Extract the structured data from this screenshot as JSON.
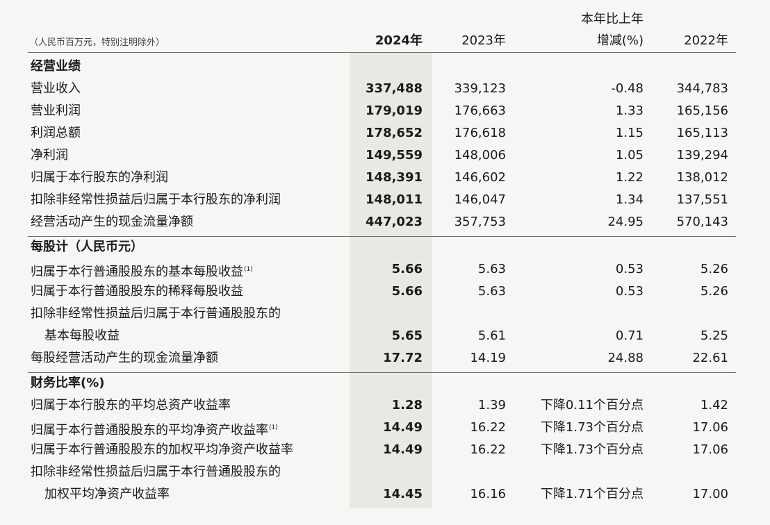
{
  "header": {
    "unit_note": "（人民币百万元，特别注明除外）",
    "col_2024": "2024年",
    "col_2023": "2023年",
    "col_change_line1": "本年比上年",
    "col_change_line2": "增减(%)",
    "col_2022": "2022年"
  },
  "sections": [
    {
      "title": "经营业绩",
      "rows": [
        {
          "label": "营业收入",
          "v2024": "337,488",
          "v2023": "339,123",
          "change": "-0.48",
          "v2022": "344,783"
        },
        {
          "label": "营业利润",
          "v2024": "179,019",
          "v2023": "176,663",
          "change": "1.33",
          "v2022": "165,156"
        },
        {
          "label": "利润总额",
          "v2024": "178,652",
          "v2023": "176,618",
          "change": "1.15",
          "v2022": "165,113"
        },
        {
          "label": "净利润",
          "v2024": "149,559",
          "v2023": "148,006",
          "change": "1.05",
          "v2022": "139,294"
        },
        {
          "label": "归属于本行股东的净利润",
          "v2024": "148,391",
          "v2023": "146,602",
          "change": "1.22",
          "v2022": "138,012"
        },
        {
          "label": "扣除非经常性损益后归属于本行股东的净利润",
          "v2024": "148,011",
          "v2023": "146,047",
          "change": "1.34",
          "v2022": "137,551"
        },
        {
          "label": "经营活动产生的现金流量净额",
          "v2024": "447,023",
          "v2023": "357,753",
          "change": "24.95",
          "v2022": "570,143"
        }
      ]
    },
    {
      "title": "每股计（人民币元）",
      "rows": [
        {
          "label": "归属于本行普通股股东的基本每股收益",
          "note": "(1)",
          "v2024": "5.66",
          "v2023": "5.63",
          "change": "0.53",
          "v2022": "5.26"
        },
        {
          "label": "归属于本行普通股股东的稀释每股收益",
          "v2024": "5.66",
          "v2023": "5.63",
          "change": "0.53",
          "v2022": "5.26"
        },
        {
          "label": "扣除非经常性损益后归属于本行普通股股东的",
          "continuation": "基本每股收益",
          "v2024": "5.65",
          "v2023": "5.61",
          "change": "0.71",
          "v2022": "5.25"
        },
        {
          "label": "每股经营活动产生的现金流量净额",
          "v2024": "17.72",
          "v2023": "14.19",
          "change": "24.88",
          "v2022": "22.61"
        }
      ]
    },
    {
      "title": "财务比率(%)",
      "rows": [
        {
          "label": "归属于本行股东的平均总资产收益率",
          "v2024": "1.28",
          "v2023": "1.39",
          "change": "下降0.11个百分点",
          "v2022": "1.42"
        },
        {
          "label": "归属于本行普通股股东的平均净资产收益率",
          "note": "(1)",
          "v2024": "14.49",
          "v2023": "16.22",
          "change": "下降1.73个百分点",
          "v2022": "17.06"
        },
        {
          "label": "归属于本行普通股股东的加权平均净资产收益率",
          "v2024": "14.49",
          "v2023": "16.22",
          "change": "下降1.73个百分点",
          "v2022": "17.06"
        },
        {
          "label": "扣除非经常性损益后归属于本行普通股股东的",
          "continuation": "加权平均净资产收益率",
          "v2024": "14.45",
          "v2023": "16.16",
          "change": "下降1.71个百分点",
          "v2022": "17.00"
        }
      ]
    }
  ],
  "colors": {
    "page_bg": "#f6f6f5",
    "highlight_col": "#e9e8e3",
    "rule": "#6c6c6c"
  }
}
